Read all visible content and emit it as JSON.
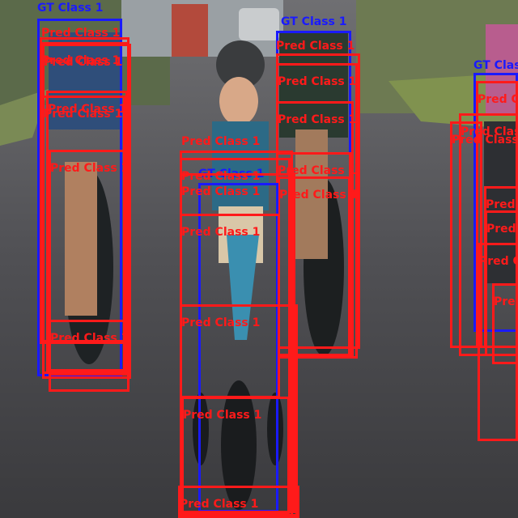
{
  "colors": {
    "gt": "#1a1aff",
    "pred": "#ff1a1a"
  },
  "labels": {
    "gt": "GT Class 1",
    "pred": "Pred Class 1"
  },
  "detections": [
    {
      "kind": "gt"
    },
    {
      "kind": "pred"
    },
    {
      "kind": "pred"
    },
    {
      "kind": "pred"
    },
    {
      "kind": "pred"
    },
    {
      "kind": "pred"
    },
    {
      "kind": "pred"
    },
    {
      "kind": "pred"
    },
    {
      "kind": "gt"
    },
    {
      "kind": "pred"
    },
    {
      "kind": "pred"
    },
    {
      "kind": "pred"
    },
    {
      "kind": "pred"
    },
    {
      "kind": "pred"
    },
    {
      "kind": "gt"
    },
    {
      "kind": "pred"
    },
    {
      "kind": "pred"
    },
    {
      "kind": "pred"
    },
    {
      "kind": "pred"
    },
    {
      "kind": "pred"
    },
    {
      "kind": "pred"
    },
    {
      "kind": "pred"
    },
    {
      "kind": "gt"
    },
    {
      "kind": "pred"
    },
    {
      "kind": "pred"
    },
    {
      "kind": "pred"
    },
    {
      "kind": "pred"
    },
    {
      "kind": "pred"
    },
    {
      "kind": "pred"
    },
    {
      "kind": "pred"
    }
  ]
}
